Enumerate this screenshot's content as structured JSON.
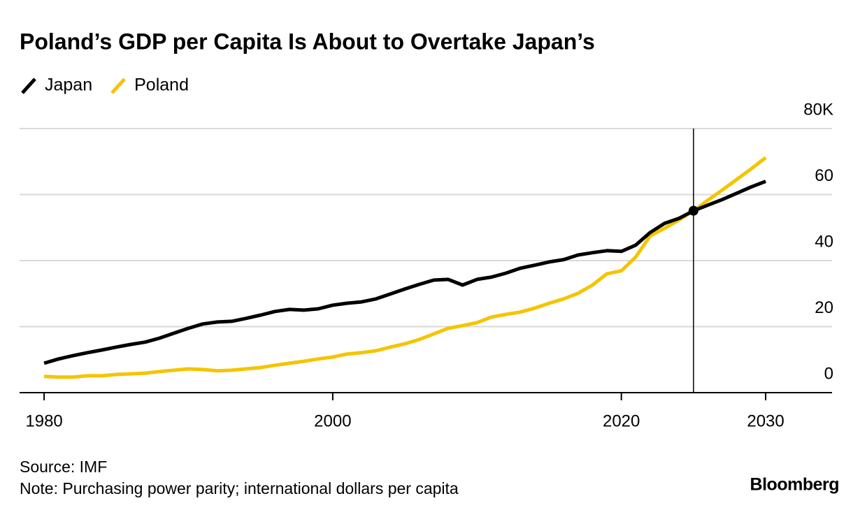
{
  "chart_data": {
    "type": "line",
    "title": "Poland’s GDP per Capita Is About to Overtake Japan’s",
    "x": [
      1980,
      1981,
      1982,
      1983,
      1984,
      1985,
      1986,
      1987,
      1988,
      1989,
      1990,
      1991,
      1992,
      1993,
      1994,
      1995,
      1996,
      1997,
      1998,
      1999,
      2000,
      2001,
      2002,
      2003,
      2004,
      2005,
      2006,
      2007,
      2008,
      2009,
      2010,
      2011,
      2012,
      2013,
      2014,
      2015,
      2016,
      2017,
      2018,
      2019,
      2020,
      2021,
      2022,
      2023,
      2024,
      2025,
      2026,
      2027,
      2028,
      2029,
      2030
    ],
    "series": [
      {
        "name": "Japan",
        "color": "#000000",
        "values": [
          8.9,
          10.2,
          11.2,
          12.1,
          12.9,
          13.8,
          14.6,
          15.3,
          16.5,
          18.0,
          19.5,
          20.8,
          21.4,
          21.6,
          22.5,
          23.5,
          24.6,
          25.2,
          25.0,
          25.4,
          26.5,
          27.1,
          27.5,
          28.4,
          29.9,
          31.4,
          32.8,
          34.1,
          34.3,
          32.6,
          34.3,
          35.0,
          36.2,
          37.7,
          38.6,
          39.6,
          40.3,
          41.7,
          42.4,
          43.0,
          42.8,
          44.7,
          48.5,
          51.3,
          52.8,
          55.1,
          56.8,
          58.5,
          60.4,
          62.3,
          64.0
        ]
      },
      {
        "name": "Poland",
        "color": "#f5c400",
        "values": [
          4.9,
          4.7,
          4.7,
          5.1,
          5.1,
          5.5,
          5.7,
          5.9,
          6.4,
          6.8,
          7.2,
          7.0,
          6.6,
          6.8,
          7.2,
          7.6,
          8.3,
          8.9,
          9.5,
          10.2,
          10.8,
          11.7,
          12.1,
          12.7,
          13.8,
          14.8,
          16.1,
          17.8,
          19.5,
          20.3,
          21.2,
          22.9,
          23.7,
          24.4,
          25.6,
          27.1,
          28.4,
          30.1,
          32.6,
          36.0,
          36.9,
          41.1,
          47.5,
          49.8,
          52.3,
          55.1,
          58.3,
          61.4,
          64.6,
          67.8,
          71.2
        ]
      }
    ],
    "highlight_index": 45,
    "xlim": [
      1978.3,
      2034.6
    ],
    "xticks": [
      1980,
      2000,
      2020,
      2030
    ],
    "ylim": [
      0,
      80
    ],
    "yticks": [
      0,
      20,
      40,
      60,
      {
        "value": 80,
        "label": "80K"
      }
    ],
    "grid": true,
    "legend": "top-left",
    "source": "Source: IMF",
    "note": "Note: Purchasing power parity; international dollars per capita",
    "brand": "Bloomberg"
  }
}
